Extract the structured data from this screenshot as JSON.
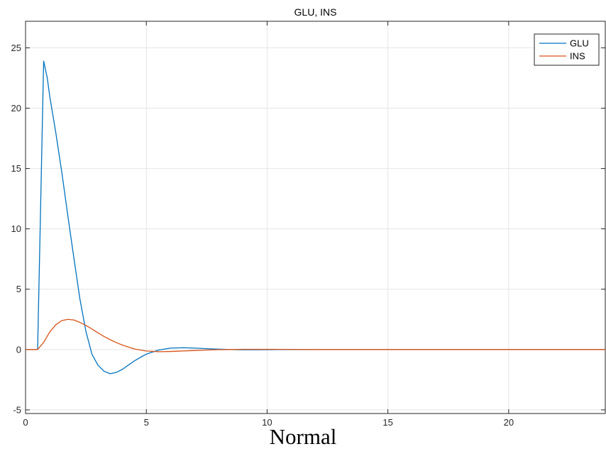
{
  "caption": "Normal",
  "colors": {
    "glu": "#0072BD",
    "ins": "#D95319",
    "grid": "#e5e5e5",
    "axis": "#262626"
  },
  "chart_data": {
    "type": "line",
    "title": "GLU, INS",
    "xlabel": "",
    "ylabel": "",
    "xlim": [
      0,
      24
    ],
    "ylim": [
      -5.3,
      27.2
    ],
    "xticks": [
      0,
      5,
      10,
      15,
      20
    ],
    "yticks": [
      -5,
      0,
      5,
      10,
      15,
      20,
      25
    ],
    "grid": true,
    "legend_position": "top-right",
    "series": [
      {
        "name": "GLU",
        "color": "#0072BD",
        "x": [
          0,
          0.5,
          0.75,
          0.9,
          1.0,
          1.25,
          1.5,
          1.75,
          2.0,
          2.25,
          2.5,
          2.75,
          3.0,
          3.25,
          3.5,
          3.75,
          4.0,
          4.25,
          4.5,
          4.75,
          5.0,
          5.5,
          6.0,
          6.5,
          7.0,
          7.5,
          8.0,
          8.5,
          9.0,
          9.5,
          10.0,
          10.5,
          11.0,
          12.0,
          13.0,
          15.0,
          20.0,
          24.0
        ],
        "y": [
          0,
          0,
          23.9,
          22.5,
          21.0,
          18.0,
          14.7,
          11.1,
          7.6,
          4.2,
          1.5,
          -0.4,
          -1.3,
          -1.8,
          -2.0,
          -1.9,
          -1.65,
          -1.3,
          -0.95,
          -0.65,
          -0.38,
          -0.05,
          0.12,
          0.15,
          0.12,
          0.07,
          0.03,
          0.0,
          -0.02,
          -0.02,
          -0.01,
          0.0,
          0.0,
          0.0,
          0.0,
          0.0,
          0.0,
          0.0
        ]
      },
      {
        "name": "INS",
        "color": "#D95319",
        "x": [
          0,
          0.5,
          0.75,
          1.0,
          1.25,
          1.5,
          1.75,
          2.0,
          2.25,
          2.5,
          2.75,
          3.0,
          3.25,
          3.5,
          3.75,
          4.0,
          4.5,
          5.0,
          5.5,
          6.0,
          6.5,
          7.0,
          7.5,
          8.0,
          8.5,
          9.0,
          10.0,
          11.0,
          12.0,
          15.0,
          20.0,
          24.0
        ],
        "y": [
          0,
          0,
          0.6,
          1.45,
          2.05,
          2.4,
          2.5,
          2.45,
          2.25,
          2.0,
          1.7,
          1.38,
          1.08,
          0.82,
          0.58,
          0.38,
          0.05,
          -0.12,
          -0.18,
          -0.16,
          -0.12,
          -0.08,
          -0.04,
          -0.01,
          0.0,
          0.02,
          0.02,
          0.01,
          0.0,
          0.0,
          0.0,
          0.0
        ]
      }
    ]
  }
}
